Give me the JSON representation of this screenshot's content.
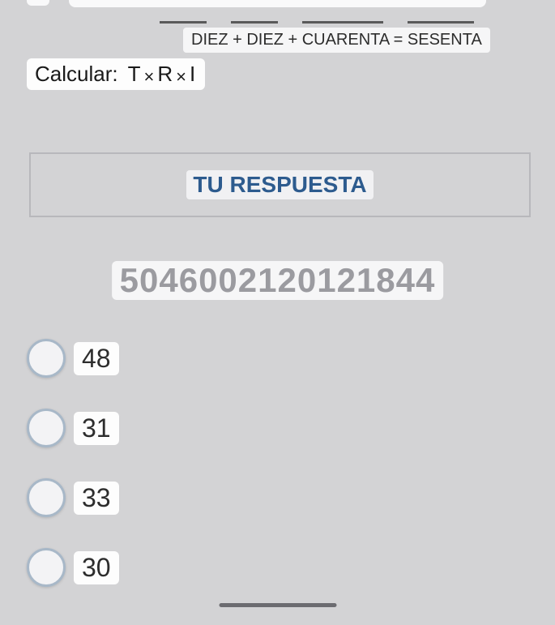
{
  "hint": "DIEZ + DIEZ + CUARENTA = SESENTA",
  "calcular": {
    "label": "Calcular:",
    "formula_parts": {
      "t": "T",
      "r": "R",
      "i": "I"
    }
  },
  "answer_label": "TU RESPUESTA",
  "big_number": "5046002120121844",
  "options": [
    {
      "value": "48"
    },
    {
      "value": "31"
    },
    {
      "value": "33"
    },
    {
      "value": "30"
    }
  ],
  "colors": {
    "background": "#d3d3d5",
    "box_bg": "#fdfdfd",
    "hint_bg": "#f6f6f7",
    "answer_text": "#2d5b8e",
    "muted_text": "#9b9ba0",
    "radio_border": "#a8b8c8",
    "radio_fill": "#f3f3f5",
    "underline": "#5a5a5a"
  }
}
